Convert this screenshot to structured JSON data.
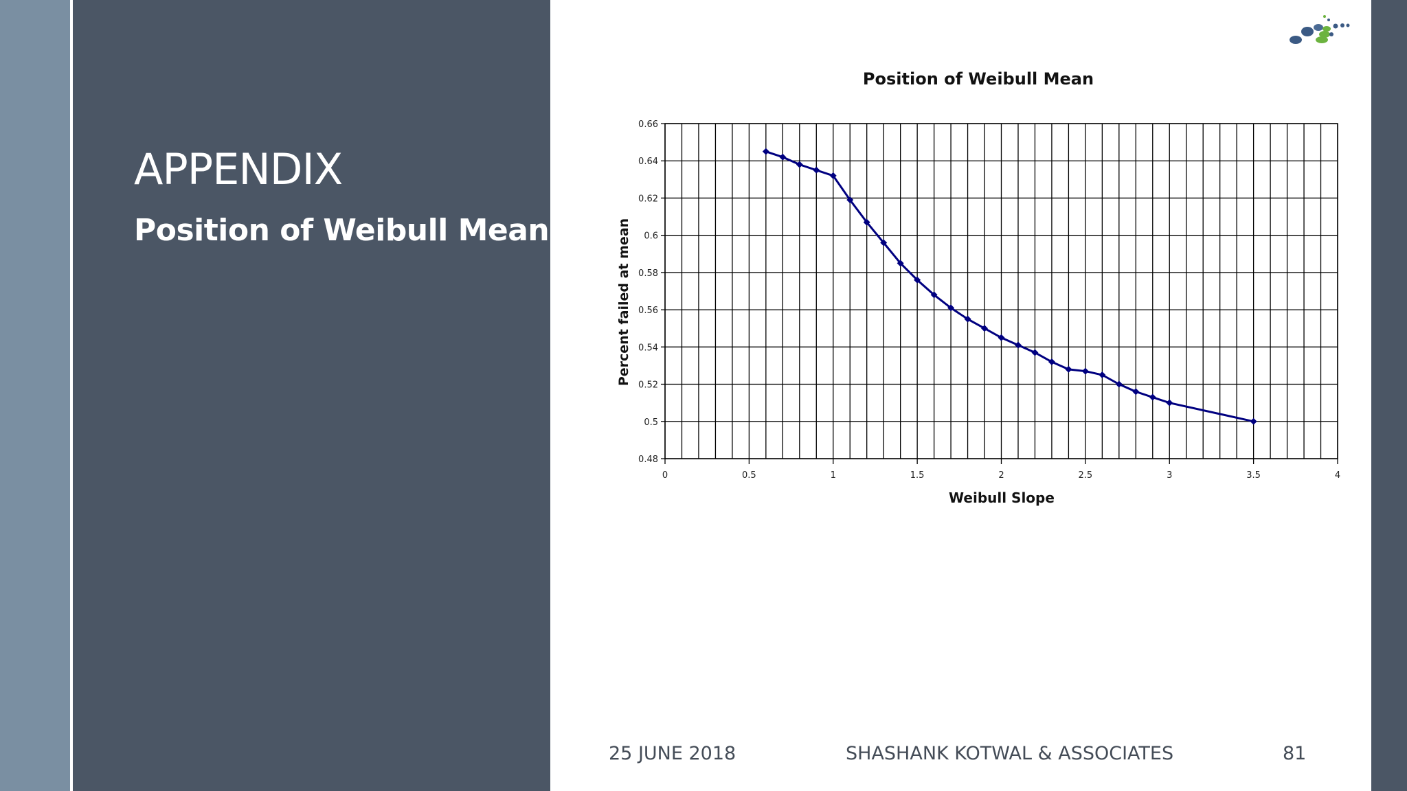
{
  "slide": {
    "title": "APPENDIX",
    "subtitle": "Position of Weibull Mean"
  },
  "footer": {
    "date": "25 JUNE 2018",
    "organization": "SHASHANK KOTWAL & ASSOCIATES",
    "page_number": "81"
  },
  "logo": {
    "icon": "company-logo-dots"
  },
  "colors": {
    "panel": "#4b5665",
    "strip": "#7a8fa2",
    "series": "#000080",
    "accent_green": "#6cb33f"
  },
  "chart_data": {
    "type": "line",
    "title": "Position of Weibull Mean",
    "xlabel": "Weibull Slope",
    "ylabel": "Percent failed at mean",
    "xlim": [
      0,
      4
    ],
    "ylim": [
      0.48,
      0.66
    ],
    "x_ticks": [
      "0",
      "0.5",
      "1",
      "1.5",
      "2",
      "2.5",
      "3",
      "3.5",
      "4"
    ],
    "y_ticks": [
      "0.48",
      "0.5",
      "0.52",
      "0.54",
      "0.56",
      "0.58",
      "0.6",
      "0.62",
      "0.64",
      "0.66"
    ],
    "grid": true,
    "legend": "none",
    "series": [
      {
        "x": [
          0.6,
          0.7,
          0.8,
          0.9,
          1.0,
          1.1,
          1.2,
          1.3,
          1.4,
          1.5,
          1.6,
          1.7,
          1.8,
          1.9,
          2.0,
          2.1,
          2.2,
          2.3,
          2.4,
          2.5,
          2.6,
          2.7,
          2.8,
          2.9,
          3.0,
          3.5
        ],
        "y": [
          0.645,
          0.642,
          0.638,
          0.635,
          0.632,
          0.619,
          0.607,
          0.596,
          0.585,
          0.576,
          0.568,
          0.561,
          0.555,
          0.55,
          0.545,
          0.541,
          0.537,
          0.532,
          0.528,
          0.527,
          0.525,
          0.52,
          0.516,
          0.513,
          0.51,
          0.5
        ]
      }
    ]
  }
}
